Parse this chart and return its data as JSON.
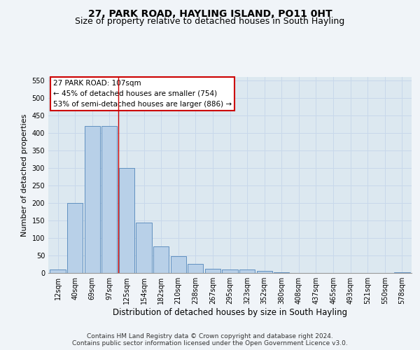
{
  "title": "27, PARK ROAD, HAYLING ISLAND, PO11 0HT",
  "subtitle": "Size of property relative to detached houses in South Hayling",
  "xlabel": "Distribution of detached houses by size in South Hayling",
  "ylabel": "Number of detached properties",
  "categories": [
    "12sqm",
    "40sqm",
    "69sqm",
    "97sqm",
    "125sqm",
    "154sqm",
    "182sqm",
    "210sqm",
    "238sqm",
    "267sqm",
    "295sqm",
    "323sqm",
    "352sqm",
    "380sqm",
    "408sqm",
    "437sqm",
    "465sqm",
    "493sqm",
    "521sqm",
    "550sqm",
    "578sqm"
  ],
  "values": [
    10,
    200,
    420,
    420,
    300,
    145,
    77,
    49,
    26,
    13,
    11,
    10,
    6,
    3,
    0,
    0,
    0,
    0,
    0,
    0,
    3
  ],
  "bar_color": "#b8d0e8",
  "bar_edge_color": "#6090c0",
  "grid_color": "#c8d8ea",
  "fig_bg_color": "#f0f4f8",
  "plot_bg_color": "#dce8f0",
  "annotation_text": "27 PARK ROAD: 107sqm\n← 45% of detached houses are smaller (754)\n53% of semi-detached houses are larger (886) →",
  "annotation_box_color": "#ffffff",
  "annotation_box_edge": "#cc0000",
  "vline_x": 3.5,
  "vline_color": "#cc0000",
  "ylim": [
    0,
    560
  ],
  "yticks": [
    0,
    50,
    100,
    150,
    200,
    250,
    300,
    350,
    400,
    450,
    500,
    550
  ],
  "footnote1": "Contains HM Land Registry data © Crown copyright and database right 2024.",
  "footnote2": "Contains public sector information licensed under the Open Government Licence v3.0.",
  "title_fontsize": 10,
  "subtitle_fontsize": 9,
  "xlabel_fontsize": 8.5,
  "ylabel_fontsize": 8,
  "tick_fontsize": 7,
  "annotation_fontsize": 7.5,
  "footnote_fontsize": 6.5
}
